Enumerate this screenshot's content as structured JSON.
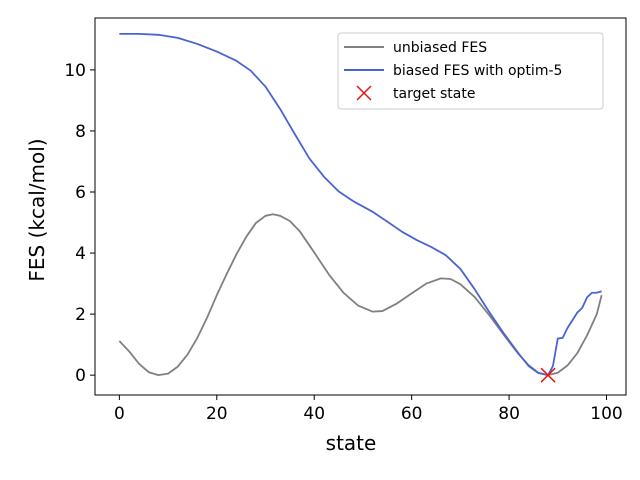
{
  "chart_data": {
    "type": "line",
    "xlabel": "state",
    "ylabel": "FES (kcal/mol)",
    "xlim": [
      -5,
      104
    ],
    "ylim": [
      -0.65,
      11.7
    ],
    "xticks": [
      0,
      20,
      40,
      60,
      80,
      100
    ],
    "yticks": [
      0,
      2,
      4,
      6,
      8,
      10
    ],
    "grid": false,
    "legend_position": "top-right",
    "series": [
      {
        "name": "unbiased FES",
        "color": "#808080",
        "points": [
          [
            0,
            1.12
          ],
          [
            2,
            0.78
          ],
          [
            4,
            0.38
          ],
          [
            6,
            0.1
          ],
          [
            8,
            0.0
          ],
          [
            10,
            0.05
          ],
          [
            12,
            0.28
          ],
          [
            14,
            0.68
          ],
          [
            16,
            1.22
          ],
          [
            18,
            1.88
          ],
          [
            20,
            2.62
          ],
          [
            22,
            3.3
          ],
          [
            24,
            3.95
          ],
          [
            26,
            4.52
          ],
          [
            28,
            4.98
          ],
          [
            30,
            5.22
          ],
          [
            31.5,
            5.27
          ],
          [
            33,
            5.22
          ],
          [
            35,
            5.05
          ],
          [
            37,
            4.72
          ],
          [
            40,
            4.02
          ],
          [
            43,
            3.3
          ],
          [
            46,
            2.7
          ],
          [
            49,
            2.28
          ],
          [
            52,
            2.08
          ],
          [
            54,
            2.1
          ],
          [
            57,
            2.35
          ],
          [
            60,
            2.68
          ],
          [
            63,
            3.0
          ],
          [
            66,
            3.17
          ],
          [
            68,
            3.15
          ],
          [
            70,
            2.98
          ],
          [
            73,
            2.55
          ],
          [
            76,
            1.95
          ],
          [
            79,
            1.3
          ],
          [
            82,
            0.68
          ],
          [
            84,
            0.33
          ],
          [
            86,
            0.08
          ],
          [
            88,
            0.0
          ],
          [
            90,
            0.08
          ],
          [
            92,
            0.32
          ],
          [
            94,
            0.72
          ],
          [
            96,
            1.3
          ],
          [
            98,
            2.0
          ],
          [
            99,
            2.62
          ]
        ]
      },
      {
        "name": "biased FES with optim-5",
        "color": "#4a63d3",
        "points": [
          [
            0,
            11.18
          ],
          [
            4,
            11.18
          ],
          [
            8,
            11.15
          ],
          [
            12,
            11.05
          ],
          [
            16,
            10.85
          ],
          [
            20,
            10.6
          ],
          [
            24,
            10.3
          ],
          [
            27,
            9.97
          ],
          [
            30,
            9.45
          ],
          [
            33,
            8.72
          ],
          [
            36,
            7.9
          ],
          [
            39,
            7.1
          ],
          [
            42,
            6.5
          ],
          [
            45,
            6.02
          ],
          [
            48,
            5.7
          ],
          [
            52,
            5.35
          ],
          [
            55,
            5.03
          ],
          [
            58,
            4.7
          ],
          [
            61,
            4.43
          ],
          [
            64,
            4.2
          ],
          [
            67,
            3.93
          ],
          [
            70,
            3.48
          ],
          [
            73,
            2.8
          ],
          [
            76,
            2.05
          ],
          [
            79,
            1.35
          ],
          [
            82,
            0.7
          ],
          [
            84,
            0.3
          ],
          [
            86,
            0.07
          ],
          [
            88,
            0.0
          ],
          [
            89,
            0.3
          ],
          [
            90,
            1.2
          ],
          [
            91,
            1.22
          ],
          [
            92,
            1.55
          ],
          [
            94,
            2.05
          ],
          [
            95,
            2.2
          ],
          [
            96,
            2.55
          ],
          [
            97,
            2.7
          ],
          [
            98,
            2.7
          ],
          [
            99,
            2.75
          ]
        ]
      }
    ],
    "markers": [
      {
        "name": "target state",
        "color": "#e8140e",
        "x": 88,
        "y": 0.0,
        "symbol": "x"
      }
    ]
  }
}
